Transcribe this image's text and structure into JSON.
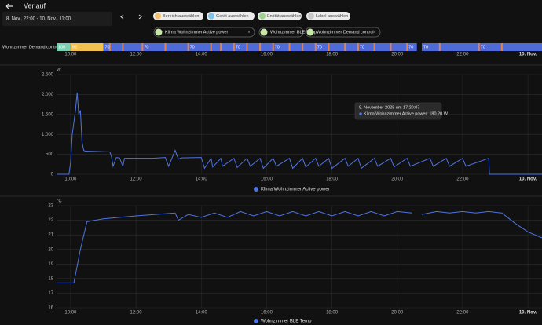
{
  "header": {
    "title": "Verlauf",
    "date_range": "8. Nov., 22:00 - 10. Nov., 11:00"
  },
  "target_pickers": [
    {
      "label": "Bereich auswählen",
      "color": "#f3c26b"
    },
    {
      "label": "Gerät auswählen",
      "color": "#7fc4ee"
    },
    {
      "label": "Entität auswählen",
      "color": "#9bd38a"
    },
    {
      "label": "Label auswählen",
      "color": "#c8c8c8"
    }
  ],
  "selected_entities": [
    {
      "label": "Klima Wohnzimmer Active power"
    },
    {
      "label": "Wohnzimmer BLE Temp"
    },
    {
      "label": "Wohnzimmer Demand control"
    }
  ],
  "chart_data": [
    {
      "type": "timeline",
      "label": "Wohnzimmer  Demand control",
      "xlim": [
        9.57,
        24.43
      ],
      "xticks": [
        {
          "value": 10,
          "label": "10:00"
        },
        {
          "value": 12,
          "label": "12:00"
        },
        {
          "value": 14,
          "label": "14:00"
        },
        {
          "value": 16,
          "label": "16:00"
        },
        {
          "value": 18,
          "label": "18:00"
        },
        {
          "value": 20,
          "label": "20:00"
        },
        {
          "value": 22,
          "label": "22:00"
        },
        {
          "value": 24,
          "label": "10. Nov."
        }
      ],
      "state_colors": {
        "100": "#7ccfb0",
        "95": "#f1c04e",
        "70": "#4f6bd8"
      },
      "segments": [
        {
          "start": 9.57,
          "end": 10.0,
          "state": "100"
        },
        {
          "start": 10.0,
          "end": 11.0,
          "state": "95"
        },
        {
          "start": 11.0,
          "end": 12.2,
          "state": "70"
        },
        {
          "start": 12.2,
          "end": 13.6,
          "state": "70"
        },
        {
          "start": 13.6,
          "end": 15.0,
          "state": "70"
        },
        {
          "start": 15.0,
          "end": 16.2,
          "state": "70"
        },
        {
          "start": 16.2,
          "end": 17.5,
          "state": "70"
        },
        {
          "start": 17.5,
          "end": 18.8,
          "state": "70"
        },
        {
          "start": 18.8,
          "end": 20.3,
          "state": "70"
        },
        {
          "start": 20.3,
          "end": 20.6,
          "state": "70"
        },
        {
          "start": 20.75,
          "end": 22.5,
          "state": "70"
        },
        {
          "start": 22.5,
          "end": 24.43,
          "state": "70"
        }
      ],
      "stripe_color": "#e8814a",
      "stripes": [
        11.2,
        11.6,
        12.2,
        12.9,
        13.6,
        14.3,
        14.6,
        15.0,
        15.4,
        15.8,
        16.2,
        16.7,
        17.1,
        17.5,
        17.9,
        18.4,
        18.8,
        19.3,
        19.8,
        20.3,
        21.3,
        22.5,
        23.2
      ]
    },
    {
      "type": "line",
      "unit": "W",
      "xlim": [
        9.57,
        24.43
      ],
      "xticks": [
        {
          "value": 10,
          "label": "10:00"
        },
        {
          "value": 12,
          "label": "12:00"
        },
        {
          "value": 14,
          "label": "14:00"
        },
        {
          "value": 16,
          "label": "16:00"
        },
        {
          "value": 18,
          "label": "18:00"
        },
        {
          "value": 20,
          "label": "20:00"
        },
        {
          "value": 22,
          "label": "22:00"
        },
        {
          "value": 24,
          "label": "10. Nov."
        }
      ],
      "ylim": [
        0,
        2500
      ],
      "yticks": [
        0,
        500,
        {
          "value": 1000,
          "label": "1.000"
        },
        {
          "value": 1500,
          "label": "1.500"
        },
        {
          "value": 2000,
          "label": "2.000"
        },
        {
          "value": 2500,
          "label": "2.500"
        }
      ],
      "grid": true,
      "x": [
        9.57,
        9.95,
        10.0,
        10.05,
        10.1,
        10.15,
        10.2,
        10.25,
        10.3,
        10.35,
        10.4,
        10.45,
        11.2,
        11.25,
        11.3,
        11.4,
        11.5,
        11.6,
        11.65,
        12.5,
        12.9,
        13.0,
        13.2,
        13.3,
        13.4,
        14.0,
        14.1,
        14.3,
        14.35,
        14.6,
        14.65,
        15.0,
        15.1,
        15.4,
        15.5,
        15.8,
        15.9,
        16.2,
        16.3,
        16.7,
        16.8,
        17.1,
        17.2,
        17.5,
        17.6,
        17.9,
        18.0,
        18.4,
        18.5,
        18.8,
        18.9,
        19.3,
        19.4,
        19.8,
        19.9,
        20.3,
        20.4,
        21.0,
        21.1,
        21.5,
        21.6,
        22.0,
        22.1,
        22.8,
        22.82,
        24.43
      ],
      "series": [
        {
          "name": "Klima Wohnzimmer Active power",
          "color": "#4f74e3",
          "values": [
            0,
            0,
            300,
            1000,
            1300,
            1600,
            2050,
            1500,
            1600,
            800,
            600,
            580,
            560,
            450,
            200,
            420,
            410,
            200,
            400,
            400,
            420,
            200,
            600,
            380,
            410,
            420,
            150,
            400,
            180,
            400,
            200,
            400,
            170,
            400,
            200,
            400,
            150,
            400,
            200,
            400,
            150,
            400,
            180,
            400,
            200,
            400,
            150,
            400,
            200,
            400,
            150,
            400,
            200,
            400,
            180,
            400,
            200,
            400,
            200,
            400,
            200,
            400,
            200,
            400,
            0,
            0
          ]
        }
      ],
      "tooltip": {
        "title": "9. November 2025 um 17:20:07",
        "text": "Klima Wohnzimmer Active power: 180,20 W"
      }
    },
    {
      "type": "line",
      "unit": "°C",
      "xlim": [
        9.57,
        24.43
      ],
      "xticks": [
        {
          "value": 10,
          "label": "10:00"
        },
        {
          "value": 12,
          "label": "12:00"
        },
        {
          "value": 14,
          "label": "14:00"
        },
        {
          "value": 16,
          "label": "16:00"
        },
        {
          "value": 18,
          "label": "18:00"
        },
        {
          "value": 20,
          "label": "20:00"
        },
        {
          "value": 22,
          "label": "22:00"
        },
        {
          "value": 24,
          "label": "10. Nov."
        }
      ],
      "ylim": [
        16,
        23
      ],
      "yticks": [
        16,
        17,
        18,
        19,
        20,
        21,
        22,
        23
      ],
      "grid": true,
      "x": [
        9.57,
        10.1,
        10.3,
        10.5,
        11.0,
        12.0,
        13.2,
        13.3,
        13.6,
        14.0,
        14.4,
        14.8,
        15.2,
        15.6,
        16.0,
        16.4,
        16.8,
        17.2,
        17.6,
        18.0,
        18.4,
        18.8,
        19.2,
        19.6,
        20.0,
        20.45,
        20.55,
        20.75,
        21.2,
        21.6,
        22.0,
        22.4,
        22.8,
        23.2,
        23.6,
        24.0,
        24.43
      ],
      "series": [
        {
          "name": "Wohnzimmer BLE Temp",
          "color": "#4f74e3",
          "values": [
            17.7,
            17.7,
            20.0,
            21.9,
            22.1,
            22.3,
            22.5,
            22.0,
            22.4,
            22.2,
            22.5,
            22.2,
            22.6,
            22.3,
            22.6,
            22.3,
            22.6,
            22.3,
            22.6,
            22.3,
            22.6,
            22.3,
            22.6,
            22.3,
            22.6,
            22.5,
            null,
            22.4,
            22.6,
            22.5,
            22.6,
            22.5,
            22.6,
            22.5,
            21.8,
            21.2,
            20.8
          ]
        }
      ]
    }
  ]
}
